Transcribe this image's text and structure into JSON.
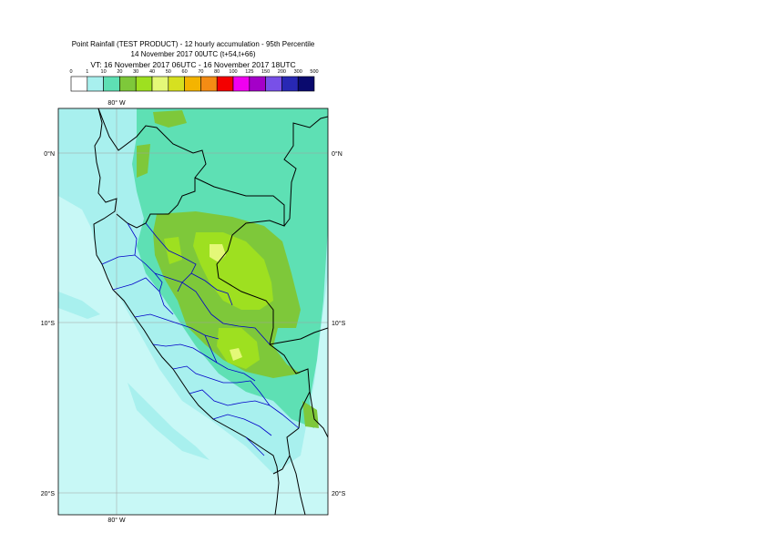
{
  "title": {
    "line1": "Point Rainfall (TEST PRODUCT) - 12 hourly accumulation - 95th Percentile",
    "line2": "14 November 2017 00UTC (t+54,t+66)",
    "line3": "VT: 16 November 2017 06UTC - 16 November 2017 18UTC"
  },
  "legend": {
    "breaks": [
      "0",
      "1",
      "10",
      "20",
      "30",
      "40",
      "50",
      "60",
      "70",
      "80",
      "100",
      "125",
      "150",
      "200",
      "300",
      "500"
    ],
    "colors": [
      "#ffffff",
      "#a8f0ee",
      "#5ee0b4",
      "#7ec83a",
      "#9ee020",
      "#e4f878",
      "#d6e020",
      "#f4b400",
      "#f48c14",
      "#f40000",
      "#f000f0",
      "#a400c8",
      "#7850e8",
      "#2828b4",
      "#0a0a6e"
    ]
  },
  "map": {
    "lon_top_label": "80° W",
    "lon_bottom_label": "80° W",
    "lat_labels": {
      "left_0": "0°N",
      "right_0": "0°N",
      "left_10": "10°S",
      "right_10": "10°S",
      "left_20": "20°S",
      "right_20": "20°S"
    },
    "colors": {
      "ocean": "#c8f8f6",
      "light_rain": "#a8f0ee",
      "medium_rain": "#5ee0b4",
      "heavy_rain": "#7ec83a",
      "very_heavy": "#9ee020",
      "peak": "#e4f878",
      "country_border": "#000000",
      "region_border": "#0000c8",
      "grid": "#a0a0a0"
    }
  }
}
